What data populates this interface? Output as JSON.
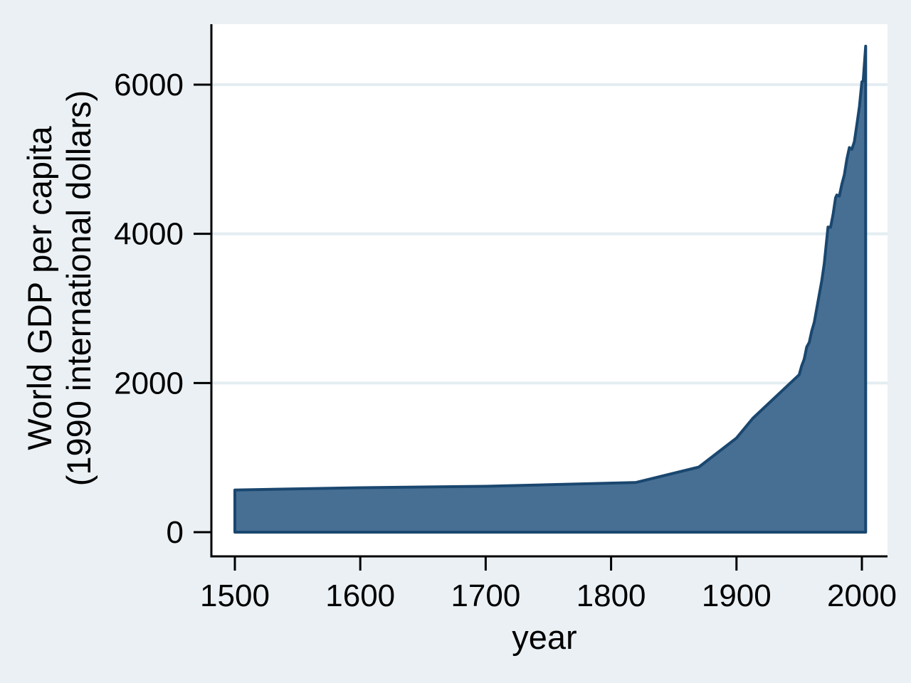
{
  "chart_data": {
    "type": "area",
    "title": "",
    "xlabel": "year",
    "ylabel": "World GDP per capita (1990 international dollars)",
    "ylabel_lines": [
      "World GDP per capita",
      "(1990 international dollars)"
    ],
    "series": [
      {
        "name": "World GDP per capita (1990 international dollars)",
        "x": [
          1500,
          1600,
          1700,
          1820,
          1870,
          1900,
          1913,
          1950,
          1952,
          1954,
          1956,
          1958,
          1960,
          1962,
          1964,
          1966,
          1968,
          1970,
          1973,
          1975,
          1977,
          1979,
          1980,
          1982,
          1984,
          1986,
          1988,
          1990,
          1992,
          1994,
          1996,
          1998,
          2000,
          2001,
          2003
        ],
        "y": [
          566,
          596,
          615,
          667,
          873,
          1262,
          1526,
          2111,
          2230,
          2318,
          2484,
          2543,
          2697,
          2811,
          3001,
          3188,
          3370,
          3599,
          4091,
          4088,
          4260,
          4483,
          4520,
          4505,
          4664,
          4789,
          5002,
          5157,
          5133,
          5236,
          5469,
          5704,
          6038,
          6049,
          6516
        ]
      }
    ],
    "xticks": [
      1500,
      1600,
      1700,
      1800,
      1900,
      2000
    ],
    "yticks": [
      0,
      2000,
      4000,
      6000
    ],
    "xlim": [
      1481,
      2021
    ],
    "ylim": [
      0,
      6810
    ],
    "grid": true,
    "legend": "none",
    "colors": {
      "background": "#eaf0f4",
      "plot_background": "#ffffff",
      "gridline": "#e4edf1",
      "area_fill": "#476f93",
      "area_stroke": "#1a476f",
      "axis": "#000000",
      "text": "#000000"
    }
  }
}
